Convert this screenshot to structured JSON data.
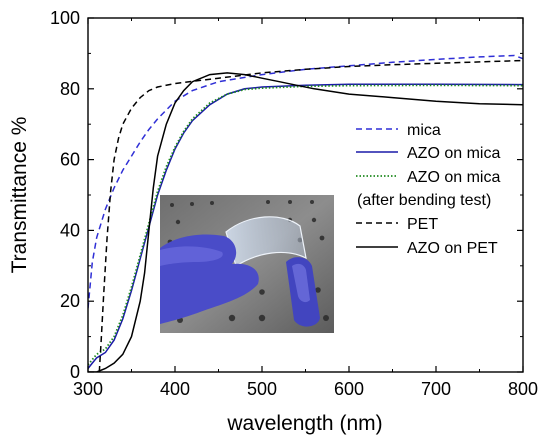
{
  "chart_data": {
    "type": "line",
    "xlabel": "wavelength  (nm)",
    "ylabel": "Transmittance %",
    "xlim": [
      300,
      800
    ],
    "ylim": [
      0,
      100
    ],
    "x_ticks": [
      300,
      400,
      500,
      600,
      700,
      800
    ],
    "y_ticks": [
      0,
      20,
      40,
      60,
      80,
      100
    ],
    "grid": false,
    "legend_position": "right",
    "inset_photo": "hand with blue glove holding flexible transparent film",
    "series": [
      {
        "name": "mica",
        "color": "#2f2fd6",
        "dash": "dashed",
        "x": [
          300,
          305,
          310,
          320,
          330,
          340,
          350,
          360,
          370,
          380,
          390,
          400,
          420,
          450,
          500,
          550,
          600,
          650,
          700,
          750,
          790,
          800
        ],
        "y": [
          18,
          31,
          38,
          46,
          52,
          57,
          61,
          65,
          68.5,
          71.5,
          74,
          76.5,
          79.5,
          82,
          84,
          85.5,
          86.5,
          87.5,
          88.3,
          89,
          89.4,
          88.5
        ]
      },
      {
        "name": "AZO on mica",
        "color": "#1a1aa8",
        "dash": "solid",
        "x": [
          300,
          305,
          310,
          320,
          330,
          340,
          350,
          360,
          370,
          380,
          390,
          400,
          410,
          420,
          440,
          460,
          480,
          500,
          550,
          600,
          700,
          800
        ],
        "y": [
          1,
          2.5,
          4,
          5.5,
          9,
          15,
          23,
          32,
          41,
          50,
          57,
          63,
          67.5,
          71,
          75.5,
          78.5,
          80,
          80.5,
          81,
          81.3,
          81.3,
          81.2
        ]
      },
      {
        "name": "AZO on mica",
        "sublabel": "(after bending test)",
        "color": "#1f8a1f",
        "dash": "dotted",
        "x": [
          300,
          305,
          310,
          320,
          330,
          340,
          350,
          360,
          370,
          380,
          390,
          400,
          410,
          420,
          440,
          460,
          480,
          500,
          550,
          600,
          700,
          800
        ],
        "y": [
          2,
          3.5,
          5,
          6.5,
          10,
          16,
          24,
          33,
          42,
          51,
          58,
          63.5,
          68,
          71.5,
          76,
          78.5,
          79.8,
          80.2,
          80.7,
          80.9,
          81,
          80.9
        ]
      },
      {
        "name": "PET",
        "color": "#000000",
        "dash": "dashed",
        "x": [
          313,
          315,
          318,
          322,
          326,
          330,
          335,
          340,
          350,
          360,
          370,
          380,
          400,
          450,
          500,
          550,
          600,
          650,
          700,
          750,
          800
        ],
        "y": [
          0,
          8,
          22,
          38,
          51,
          60,
          66,
          70,
          74.5,
          77.5,
          79.5,
          80.5,
          81.5,
          83,
          84.5,
          85.5,
          86.3,
          86.8,
          87.2,
          87.6,
          88
        ]
      },
      {
        "name": "AZO on PET",
        "color": "#000000",
        "dash": "solid",
        "x": [
          300,
          310,
          320,
          330,
          340,
          350,
          360,
          365,
          370,
          375,
          380,
          390,
          400,
          410,
          420,
          440,
          460,
          480,
          500,
          520,
          540,
          560,
          600,
          650,
          700,
          750,
          800
        ],
        "y": [
          0,
          0,
          1,
          2.5,
          5,
          10,
          20,
          28,
          40,
          52,
          61,
          70,
          76,
          79.5,
          82,
          84,
          84.5,
          84,
          83,
          82,
          81,
          80,
          78.5,
          77.5,
          76.5,
          75.8,
          75.5
        ]
      }
    ]
  }
}
